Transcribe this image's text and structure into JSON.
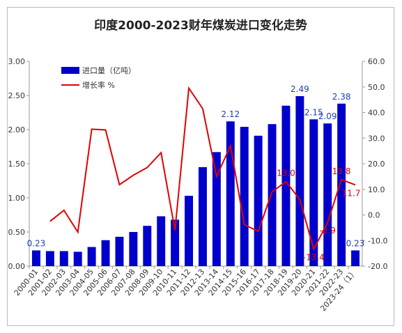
{
  "chart_data": {
    "type": "bar_line",
    "title": "印度2000-2023财年煤炭进口变化走势",
    "categories": [
      "2000-01",
      "2001-02",
      "2002-03",
      "2003-04",
      "2004-05",
      "2005-06",
      "2006-07",
      "2007-08",
      "2008-09",
      "2009-10",
      "2010-11",
      "2011-12",
      "2012-13",
      "2013-14",
      "2014-15",
      "2015-16",
      "2016-17",
      "2017-18",
      "2018-19",
      "2019-20",
      "2020-21",
      "2021-22",
      "2022-23",
      "2023-24（1）"
    ],
    "series": [
      {
        "name": "进口量（亿吨）",
        "type": "bar",
        "color": "#0000cc",
        "axis": "y",
        "values": [
          0.23,
          0.22,
          0.22,
          0.21,
          0.28,
          0.38,
          0.43,
          0.5,
          0.59,
          0.73,
          0.68,
          1.03,
          1.45,
          1.67,
          2.12,
          2.04,
          1.91,
          2.08,
          2.35,
          2.49,
          2.15,
          2.09,
          2.38,
          0.23
        ],
        "value_labels": [
          "0.23",
          null,
          null,
          null,
          null,
          null,
          null,
          null,
          null,
          null,
          null,
          null,
          null,
          null,
          "2.12",
          null,
          null,
          null,
          null,
          "2.49",
          "2.15",
          "2.09",
          "2.38",
          "0.23"
        ]
      },
      {
        "name": "增长率 %",
        "type": "line",
        "color": "#e00000",
        "axis": "y2",
        "values": [
          null,
          -2.5,
          1.8,
          -6.7,
          33.5,
          33.2,
          11.8,
          15.5,
          18.5,
          24.3,
          -6.0,
          49.5,
          41.5,
          15.0,
          27.0,
          -3.8,
          -6.4,
          9.0,
          13.0,
          6.0,
          -13.4,
          -2.9,
          13.8,
          11.7
        ],
        "value_labels": [
          null,
          null,
          null,
          null,
          null,
          null,
          null,
          null,
          null,
          null,
          null,
          null,
          null,
          null,
          null,
          null,
          null,
          null,
          "13.0",
          null,
          "-13.4",
          "-2.9",
          "13.8",
          "11.7"
        ]
      }
    ],
    "ylim": [
      0,
      3
    ],
    "yticks": [
      {
        "value": 0,
        "label": "0.00"
      },
      {
        "value": 0.5,
        "label": "0.50"
      },
      {
        "value": 1,
        "label": "1.00"
      },
      {
        "value": 1.5,
        "label": "1.50"
      },
      {
        "value": 2,
        "label": "2.00"
      },
      {
        "value": 2.5,
        "label": "2.50"
      },
      {
        "value": 3,
        "label": "3.00"
      }
    ],
    "y2lim": [
      -20,
      60
    ],
    "y2ticks": [
      {
        "value": -20,
        "label": "-20.0"
      },
      {
        "value": -10,
        "label": "-10.0"
      },
      {
        "value": 0,
        "label": "0.0"
      },
      {
        "value": 10,
        "label": "10.0"
      },
      {
        "value": 20,
        "label": "20.0"
      },
      {
        "value": 30,
        "label": "30.0"
      },
      {
        "value": 40,
        "label": "40.0"
      },
      {
        "value": 50,
        "label": "50.0"
      },
      {
        "value": 60,
        "label": "60.0"
      }
    ],
    "legend": "upper left"
  }
}
